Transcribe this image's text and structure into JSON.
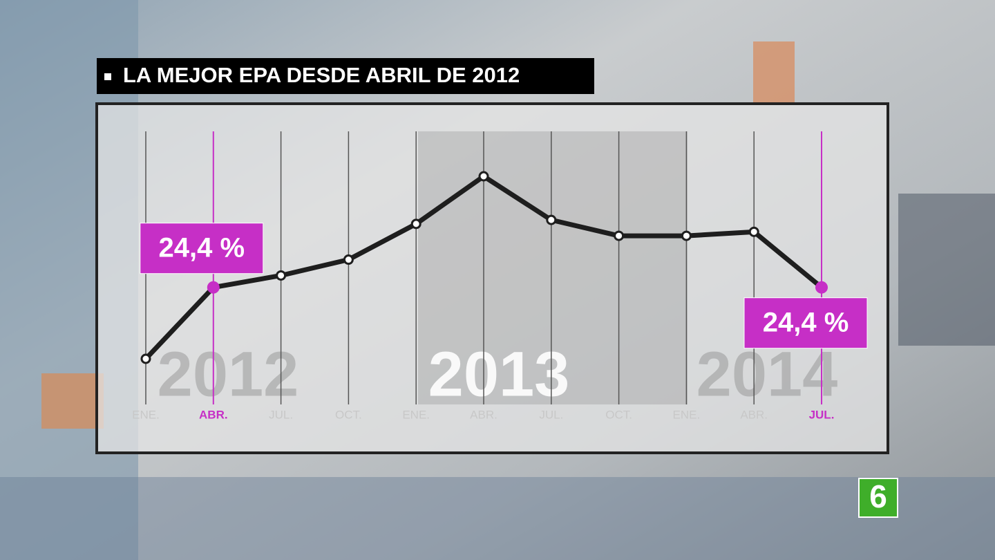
{
  "chart_data": {
    "type": "line",
    "title": "LA MEJOR EPA DESDE ABRIL DE 2012",
    "categories": [
      "ENE.",
      "ABR.",
      "JUL.",
      "OCT.",
      "ENE.",
      "ABR.",
      "JUL.",
      "OCT.",
      "ENE.",
      "ABR.",
      "JUL."
    ],
    "years": [
      "2012",
      "2013",
      "2014"
    ],
    "values": [
      22.6,
      24.4,
      24.7,
      25.1,
      26.0,
      27.2,
      26.1,
      25.7,
      25.7,
      25.8,
      24.4
    ],
    "value_labels": [
      null,
      "24,4 %",
      null,
      null,
      null,
      null,
      null,
      null,
      null,
      null,
      "24,4 %"
    ],
    "color": "#1e1e1e",
    "highlight_color": "#c62fc6",
    "logo": "6"
  }
}
